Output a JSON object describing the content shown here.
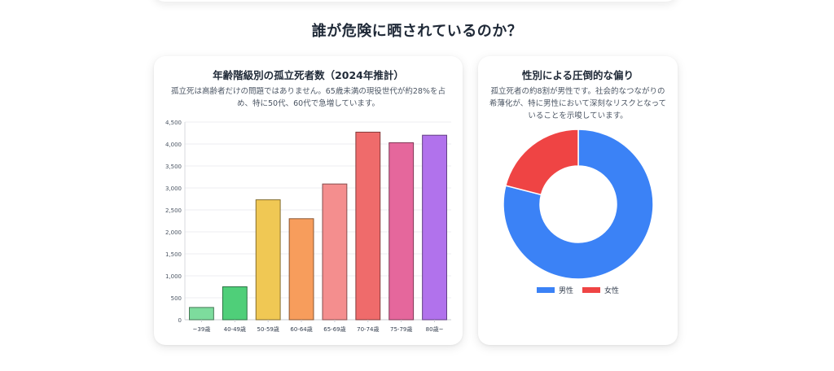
{
  "section": {
    "title": "誰が危険に晒されているのか？"
  },
  "left_card": {
    "title": "年齢階級別の孤立死者数（2024年推計）",
    "description": "孤立死は高齢者だけの問題ではありません。65歳未満の現役世代が約28%を占め、特に50代、60代で急増しています。"
  },
  "right_card": {
    "title": "性別による圧倒的な偏り",
    "description": "孤立死者の約8割が男性です。社会的なつながりの希薄化が、特に男性において深刻なリスクとなっていることを示唆しています。",
    "legend": [
      {
        "label": "男性",
        "color": "#3b82f6"
      },
      {
        "label": "女性",
        "color": "#ef4444"
      }
    ]
  },
  "chart_data": [
    {
      "type": "bar",
      "title": "年齢階級別の孤立死者数（2024年推計）",
      "categories": [
        "~39歳",
        "40-49歳",
        "50-59歳",
        "60-64歳",
        "65-69歳",
        "70-74歳",
        "75-79歳",
        "80歳~"
      ],
      "values": [
        280,
        750,
        2730,
        2300,
        3090,
        4270,
        4030,
        4200
      ],
      "colors": [
        "#7ddc9d",
        "#4fcf79",
        "#f0c854",
        "#f79d5c",
        "#f48e8e",
        "#ef6b6b",
        "#e5679c",
        "#b172ec"
      ],
      "yticks": [
        "0",
        "500",
        "1,000",
        "1,500",
        "2,000",
        "2,500",
        "3,000",
        "3,500",
        "4,000",
        "4,500"
      ],
      "ylim": [
        0,
        4500
      ],
      "grid": true,
      "legend": "none"
    },
    {
      "type": "pie",
      "title": "性別による圧倒的な偏り",
      "labels": [
        "男性",
        "女性"
      ],
      "values": [
        79,
        21
      ],
      "colors": [
        "#3b82f6",
        "#ef4444"
      ],
      "legend": "bottom"
    }
  ]
}
